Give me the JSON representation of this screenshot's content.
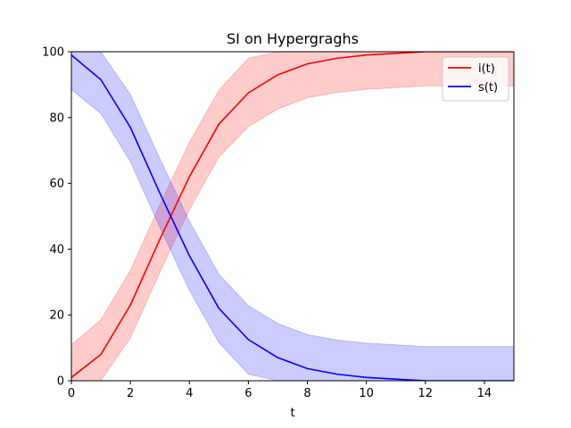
{
  "chart_data": {
    "type": "line",
    "title": "SI on Hypergraghs",
    "xlabel": "t",
    "ylabel": "",
    "xlim": [
      0,
      15
    ],
    "ylim": [
      0,
      100
    ],
    "xticks": [
      0,
      2,
      4,
      6,
      8,
      10,
      12,
      14
    ],
    "yticks": [
      0,
      20,
      40,
      60,
      80,
      100
    ],
    "grid": false,
    "legend_position": "top-right",
    "x": [
      0,
      1,
      2,
      3,
      4,
      5,
      6,
      7,
      8,
      9,
      10,
      11,
      12,
      13,
      14,
      15
    ],
    "series": [
      {
        "name": "i(t)",
        "color": "#ff0000",
        "band_color": "#ff0000",
        "values": [
          1,
          8,
          23,
          43,
          62,
          78,
          87.5,
          93,
          96.3,
          98,
          99,
          99.5,
          100,
          100,
          100,
          100
        ],
        "lower": [
          0,
          0,
          13,
          33,
          52,
          68,
          77.2,
          82.6,
          86,
          87.6,
          88.6,
          89.1,
          89.6,
          89.6,
          89.6,
          89.6
        ],
        "upper": [
          11,
          18.5,
          33.5,
          53.5,
          72.5,
          88.3,
          98,
          100,
          100,
          100,
          100,
          100,
          100,
          100,
          100,
          100
        ]
      },
      {
        "name": "s(t)",
        "color": "#0000ff",
        "band_color": "#0000ff",
        "values": [
          99,
          91.5,
          77,
          57,
          38,
          22,
          12.5,
          7,
          3.7,
          2,
          1,
          0.5,
          0,
          0,
          0,
          0
        ],
        "lower": [
          88.5,
          81.2,
          66.6,
          46.6,
          27.5,
          11.6,
          2,
          0,
          0,
          0,
          0,
          0,
          0,
          0,
          0,
          0
        ],
        "upper": [
          100,
          100,
          87,
          67.5,
          48.5,
          32.4,
          22.8,
          17.4,
          14,
          12.4,
          11.4,
          10.9,
          10.4,
          10.4,
          10.4,
          10.4
        ]
      }
    ]
  }
}
